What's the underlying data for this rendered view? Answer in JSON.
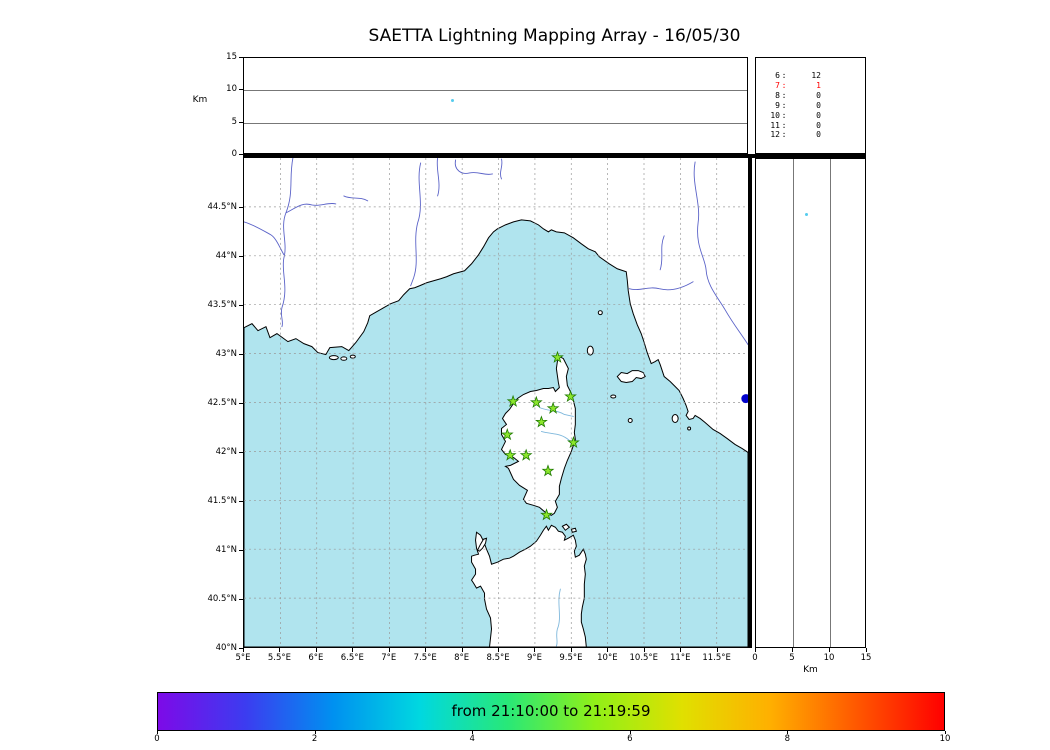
{
  "title": "SAETTA Lightning Mapping Array - 16/05/30",
  "colors": {
    "sea": "#b0e4ee",
    "land": "#ffffff",
    "coast": "#000000",
    "river": "#5b63c8",
    "river_light": "#7fb8dc",
    "grid": "#999999",
    "station_fill": "#8ce62c",
    "station_edge": "#1f7a00",
    "source_dot": "#0000cc",
    "point_dot": "#55ccee",
    "highlight": "#ff0000"
  },
  "chart_data": [
    {
      "type": "scatter",
      "panel": "altitude_vs_longitude",
      "ylabel": "Km",
      "xlim": [
        5.0,
        11.93
      ],
      "ylim": [
        0,
        15
      ],
      "yticks": [
        0,
        5,
        10,
        15
      ],
      "grid_alts": [
        5,
        10
      ],
      "points": [
        {
          "lon": 7.88,
          "alt_km": 8.2
        }
      ]
    },
    {
      "type": "scatter",
      "panel": "plan_view_map",
      "xlim": [
        5.0,
        11.93
      ],
      "ylim": [
        40.0,
        45.0
      ],
      "xticks": [
        {
          "label": "5°E",
          "value": 5.0
        },
        {
          "label": "5.5°E",
          "value": 5.5
        },
        {
          "label": "6°E",
          "value": 6.0
        },
        {
          "label": "6.5°E",
          "value": 6.5
        },
        {
          "label": "7°E",
          "value": 7.0
        },
        {
          "label": "7.5°E",
          "value": 7.5
        },
        {
          "label": "8°E",
          "value": 8.0
        },
        {
          "label": "8.5°E",
          "value": 8.5
        },
        {
          "label": "9°E",
          "value": 9.0
        },
        {
          "label": "9.5°E",
          "value": 9.5
        },
        {
          "label": "10°E",
          "value": 10.0
        },
        {
          "label": "10.5°E",
          "value": 10.5
        },
        {
          "label": "11°E",
          "value": 11.0
        },
        {
          "label": "11.5°E",
          "value": 11.5
        }
      ],
      "yticks": [
        {
          "label": "44.5°N",
          "value": 44.5
        },
        {
          "label": "44°N",
          "value": 44.0
        },
        {
          "label": "43.5°N",
          "value": 43.5
        },
        {
          "label": "43°N",
          "value": 43.0
        },
        {
          "label": "42.5°N",
          "value": 42.5
        },
        {
          "label": "42°N",
          "value": 42.0
        },
        {
          "label": "41.5°N",
          "value": 41.5
        },
        {
          "label": "41°N",
          "value": 41.0
        },
        {
          "label": "40.5°N",
          "value": 40.5
        },
        {
          "label": "40°N",
          "value": 40.0
        }
      ],
      "stations": [
        [
          9.31,
          42.96
        ],
        [
          8.7,
          42.51
        ],
        [
          9.02,
          42.5
        ],
        [
          9.25,
          42.44
        ],
        [
          9.49,
          42.56
        ],
        [
          9.09,
          42.3
        ],
        [
          8.62,
          42.17
        ],
        [
          9.53,
          42.09
        ],
        [
          8.66,
          41.96
        ],
        [
          8.88,
          41.96
        ],
        [
          9.18,
          41.8
        ],
        [
          9.16,
          41.35
        ]
      ],
      "sources": [
        {
          "lon": 11.9,
          "lat": 42.54
        }
      ]
    },
    {
      "type": "scatter",
      "panel": "altitude_vs_latitude",
      "xlabel": "Km",
      "xlim": [
        0,
        15
      ],
      "ylim": [
        40.0,
        45.0
      ],
      "xticks": [
        0,
        5,
        10,
        15
      ],
      "grid_alts": [
        5,
        10
      ],
      "points": [
        {
          "alt_km": 7.0,
          "lat": 44.42
        }
      ]
    },
    {
      "type": "table",
      "panel": "altitude_source_counts",
      "rows": [
        {
          "key": "6",
          "value": "12",
          "highlight": false
        },
        {
          "key": "7",
          "value": "1",
          "highlight": true
        },
        {
          "key": "8",
          "value": "0",
          "highlight": false
        },
        {
          "key": "9",
          "value": "0",
          "highlight": false
        },
        {
          "key": "10",
          "value": "0",
          "highlight": false
        },
        {
          "key": "11",
          "value": "0",
          "highlight": false
        },
        {
          "key": "12",
          "value": "0",
          "highlight": false
        }
      ]
    },
    {
      "type": "area",
      "panel": "time_colorbar",
      "label": "from 21:10:00 to 21:19:59",
      "range": [
        0,
        10
      ],
      "ticks": [
        0,
        2,
        4,
        6,
        8,
        10
      ],
      "gradient": [
        "#7d0ae8",
        "#3c3cf0",
        "#0090f0",
        "#00d8e0",
        "#28e878",
        "#90f018",
        "#e0e000",
        "#ffb000",
        "#ff5800",
        "#ff0000"
      ]
    }
  ]
}
